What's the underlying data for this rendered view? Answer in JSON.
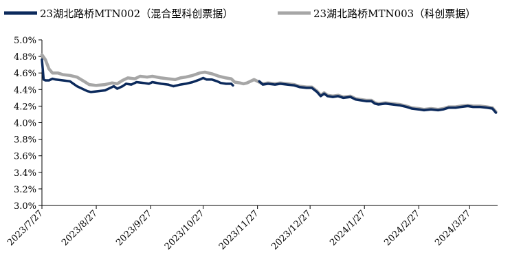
{
  "chart_data": {
    "type": "line",
    "title": "",
    "xlabel": "",
    "ylabel": "",
    "ylim": [
      3.0,
      5.0
    ],
    "yticks": [
      "5.0%",
      "4.8%",
      "4.6%",
      "4.4%",
      "4.2%",
      "4.0%",
      "3.8%",
      "3.6%",
      "3.4%",
      "3.2%",
      "3.0%"
    ],
    "ytick_values": [
      5.0,
      4.8,
      4.6,
      4.4,
      4.2,
      4.0,
      3.8,
      3.6,
      3.4,
      3.2,
      3.0
    ],
    "xlim": [
      "2023-07-27",
      "2024-04-12"
    ],
    "xticks": [
      "2023/7/27",
      "2023/8/27",
      "2023/9/27",
      "2023/10/27",
      "2023/11/27",
      "2023/12/27",
      "2024/1/27",
      "2024/2/27",
      "2024/3/27"
    ],
    "xtick_dates": [
      "2023-07-27",
      "2023-08-27",
      "2023-09-27",
      "2023-10-27",
      "2023-11-27",
      "2023-12-27",
      "2024-01-27",
      "2024-02-27",
      "2024-03-27"
    ],
    "legend_position": "top",
    "grid": false,
    "series": [
      {
        "name": "23湖北路桥MTN002（混合型科创票据）",
        "color": "#0c2a5c",
        "points": [
          [
            "2023-07-27",
            4.76
          ],
          [
            "2023-07-28",
            4.52
          ],
          [
            "2023-07-29",
            4.51
          ],
          [
            "2023-07-31",
            4.51
          ],
          [
            "2023-08-02",
            4.53
          ],
          [
            "2023-08-04",
            4.52
          ],
          [
            "2023-08-08",
            4.51
          ],
          [
            "2023-08-12",
            4.5
          ],
          [
            "2023-08-14",
            4.47
          ],
          [
            "2023-08-16",
            4.44
          ],
          [
            "2023-08-18",
            4.42
          ],
          [
            "2023-08-20",
            4.4
          ],
          [
            "2023-08-22",
            4.38
          ],
          [
            "2023-08-24",
            4.37
          ],
          [
            "2023-08-28",
            4.38
          ],
          [
            "2023-09-01",
            4.39
          ],
          [
            "2023-09-04",
            4.42
          ],
          [
            "2023-09-06",
            4.44
          ],
          [
            "2023-09-08",
            4.41
          ],
          [
            "2023-09-11",
            4.44
          ],
          [
            "2023-09-13",
            4.47
          ],
          [
            "2023-09-16",
            4.46
          ],
          [
            "2023-09-19",
            4.49
          ],
          [
            "2023-09-23",
            4.48
          ],
          [
            "2023-09-26",
            4.47
          ],
          [
            "2023-09-28",
            4.49
          ],
          [
            "2023-10-03",
            4.47
          ],
          [
            "2023-10-07",
            4.46
          ],
          [
            "2023-10-10",
            4.44
          ],
          [
            "2023-10-12",
            4.45
          ],
          [
            "2023-10-14",
            4.46
          ],
          [
            "2023-10-17",
            4.47
          ],
          [
            "2023-10-21",
            4.49
          ],
          [
            "2023-10-25",
            4.52
          ],
          [
            "2023-10-27",
            4.54
          ],
          [
            "2023-10-29",
            4.52
          ],
          [
            "2023-11-01",
            4.52
          ],
          [
            "2023-11-04",
            4.5
          ],
          [
            "2023-11-06",
            4.48
          ],
          [
            "2023-11-09",
            4.47
          ],
          [
            "2023-11-12",
            4.47
          ],
          [
            "2023-11-13",
            4.45
          ]
        ]
      },
      {
        "name": "23湖北路桥MTN003（科创票据）",
        "color": "#a6a6a6",
        "points": [
          [
            "2023-07-27",
            4.82
          ],
          [
            "2023-07-29",
            4.76
          ],
          [
            "2023-07-31",
            4.65
          ],
          [
            "2023-08-02",
            4.6
          ],
          [
            "2023-08-05",
            4.6
          ],
          [
            "2023-08-08",
            4.58
          ],
          [
            "2023-08-12",
            4.57
          ],
          [
            "2023-08-16",
            4.55
          ],
          [
            "2023-08-20",
            4.5
          ],
          [
            "2023-08-23",
            4.46
          ],
          [
            "2023-08-27",
            4.45
          ],
          [
            "2023-09-01",
            4.46
          ],
          [
            "2023-09-05",
            4.48
          ],
          [
            "2023-09-08",
            4.47
          ],
          [
            "2023-09-11",
            4.51
          ],
          [
            "2023-09-14",
            4.54
          ],
          [
            "2023-09-18",
            4.53
          ],
          [
            "2023-09-21",
            4.56
          ],
          [
            "2023-09-25",
            4.55
          ],
          [
            "2023-09-28",
            4.56
          ],
          [
            "2023-10-03",
            4.54
          ],
          [
            "2023-10-07",
            4.53
          ],
          [
            "2023-10-11",
            4.52
          ],
          [
            "2023-10-14",
            4.54
          ],
          [
            "2023-10-17",
            4.55
          ],
          [
            "2023-10-21",
            4.57
          ],
          [
            "2023-10-25",
            4.6
          ],
          [
            "2023-10-28",
            4.61
          ],
          [
            "2023-11-01",
            4.59
          ],
          [
            "2023-11-05",
            4.56
          ],
          [
            "2023-11-09",
            4.54
          ],
          [
            "2023-11-12",
            4.53
          ],
          [
            "2023-11-14",
            4.49
          ],
          [
            "2023-11-17",
            4.48
          ],
          [
            "2023-11-19",
            4.47
          ],
          [
            "2023-11-21",
            4.48
          ],
          [
            "2023-11-23",
            4.5
          ],
          [
            "2023-11-25",
            4.52
          ],
          [
            "2023-11-27",
            4.5
          ],
          [
            "2023-11-30",
            4.47
          ],
          [
            "2023-12-03",
            4.48
          ],
          [
            "2023-12-07",
            4.47
          ],
          [
            "2023-12-10",
            4.48
          ],
          [
            "2023-12-14",
            4.47
          ],
          [
            "2023-12-18",
            4.46
          ],
          [
            "2023-12-21",
            4.44
          ],
          [
            "2023-12-25",
            4.43
          ],
          [
            "2023-12-28",
            4.43
          ],
          [
            "2023-12-31",
            4.38
          ],
          [
            "2024-01-02",
            4.33
          ],
          [
            "2024-01-04",
            4.36
          ],
          [
            "2024-01-06",
            4.33
          ],
          [
            "2024-01-09",
            4.32
          ],
          [
            "2024-01-12",
            4.33
          ],
          [
            "2024-01-15",
            4.31
          ],
          [
            "2024-01-19",
            4.32
          ],
          [
            "2024-01-22",
            4.29
          ],
          [
            "2024-01-25",
            4.28
          ],
          [
            "2024-01-28",
            4.27
          ],
          [
            "2024-01-31",
            4.27
          ],
          [
            "2024-02-02",
            4.24
          ],
          [
            "2024-02-04",
            4.23
          ],
          [
            "2024-02-08",
            4.24
          ],
          [
            "2024-02-12",
            4.23
          ],
          [
            "2024-02-16",
            4.22
          ],
          [
            "2024-02-20",
            4.2
          ],
          [
            "2024-02-23",
            4.18
          ],
          [
            "2024-02-27",
            4.17
          ],
          [
            "2024-03-01",
            4.16
          ],
          [
            "2024-03-05",
            4.17
          ],
          [
            "2024-03-09",
            4.16
          ],
          [
            "2024-03-12",
            4.17
          ],
          [
            "2024-03-15",
            4.19
          ],
          [
            "2024-03-19",
            4.19
          ],
          [
            "2024-03-22",
            4.2
          ],
          [
            "2024-03-26",
            4.21
          ],
          [
            "2024-03-29",
            4.2
          ],
          [
            "2024-04-02",
            4.2
          ],
          [
            "2024-04-06",
            4.19
          ],
          [
            "2024-04-09",
            4.18
          ],
          [
            "2024-04-11",
            4.13
          ]
        ]
      },
      {
        "name": "",
        "color": "#0c2a5c",
        "hidden_legend": true,
        "points": [
          [
            "2023-11-28",
            4.5
          ],
          [
            "2023-11-30",
            4.46
          ],
          [
            "2023-12-03",
            4.47
          ],
          [
            "2023-12-07",
            4.46
          ],
          [
            "2023-12-10",
            4.47
          ],
          [
            "2023-12-14",
            4.46
          ],
          [
            "2023-12-18",
            4.45
          ],
          [
            "2023-12-21",
            4.43
          ],
          [
            "2023-12-25",
            4.42
          ],
          [
            "2023-12-28",
            4.42
          ],
          [
            "2023-12-31",
            4.37
          ],
          [
            "2024-01-02",
            4.32
          ],
          [
            "2024-01-04",
            4.35
          ],
          [
            "2024-01-06",
            4.32
          ],
          [
            "2024-01-09",
            4.31
          ],
          [
            "2024-01-12",
            4.32
          ],
          [
            "2024-01-15",
            4.3
          ],
          [
            "2024-01-19",
            4.31
          ],
          [
            "2024-01-22",
            4.28
          ],
          [
            "2024-01-25",
            4.27
          ],
          [
            "2024-01-28",
            4.26
          ],
          [
            "2024-01-31",
            4.26
          ],
          [
            "2024-02-02",
            4.23
          ],
          [
            "2024-02-04",
            4.22
          ],
          [
            "2024-02-08",
            4.23
          ],
          [
            "2024-02-12",
            4.22
          ],
          [
            "2024-02-16",
            4.21
          ],
          [
            "2024-02-20",
            4.19
          ],
          [
            "2024-02-23",
            4.17
          ],
          [
            "2024-02-27",
            4.16
          ],
          [
            "2024-03-01",
            4.15
          ],
          [
            "2024-03-05",
            4.16
          ],
          [
            "2024-03-09",
            4.15
          ],
          [
            "2024-03-12",
            4.16
          ],
          [
            "2024-03-15",
            4.18
          ],
          [
            "2024-03-19",
            4.18
          ],
          [
            "2024-03-22",
            4.19
          ],
          [
            "2024-03-26",
            4.2
          ],
          [
            "2024-03-29",
            4.19
          ],
          [
            "2024-04-02",
            4.19
          ],
          [
            "2024-04-06",
            4.18
          ],
          [
            "2024-04-09",
            4.17
          ],
          [
            "2024-04-11",
            4.12
          ]
        ]
      }
    ]
  }
}
